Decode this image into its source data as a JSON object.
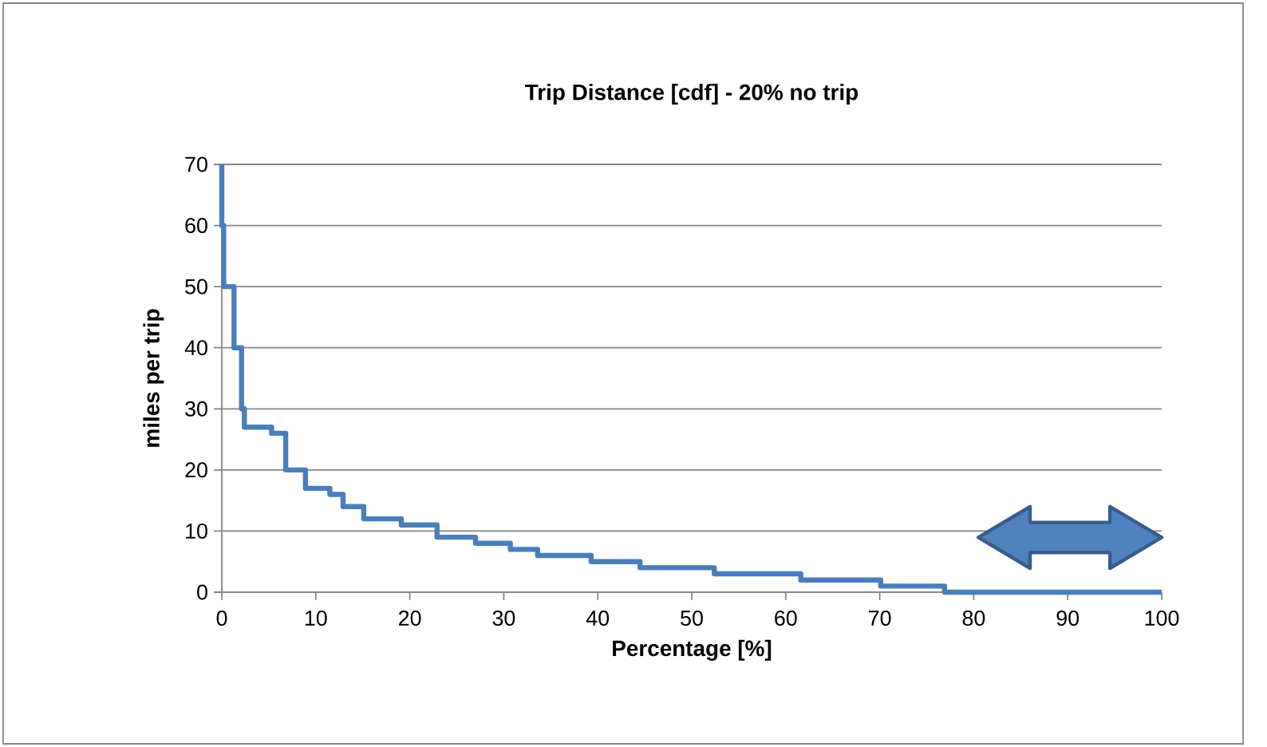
{
  "chart_data": {
    "type": "step",
    "title": "Trip Distance [cdf] - 20% no trip",
    "xlabel": "Percentage [%]",
    "ylabel": "miles per trip",
    "x": [
      0,
      0,
      0.2,
      1.3,
      2.1,
      2.4,
      5.3,
      6.8,
      8.9,
      11.5,
      12.9,
      15.1,
      19.1,
      22.9,
      27,
      30.7,
      33.6,
      39.3,
      44.5,
      52.4,
      61.6,
      70.1,
      76.9,
      100
    ],
    "series": [
      {
        "color": "#4a7ebb",
        "values": [
          70,
          60,
          50,
          40,
          30,
          27,
          26,
          20,
          17,
          16,
          14,
          12,
          11,
          9,
          8,
          7,
          6,
          5,
          4,
          3,
          2,
          1,
          0,
          0
        ]
      }
    ],
    "xlim": [
      0,
      100
    ],
    "xticks": [
      0,
      10,
      20,
      30,
      40,
      50,
      60,
      70,
      80,
      90,
      100
    ],
    "ylim": [
      0,
      70
    ],
    "yticks": [
      0,
      10,
      20,
      30,
      40,
      50,
      60,
      70
    ],
    "grid": "y"
  }
}
